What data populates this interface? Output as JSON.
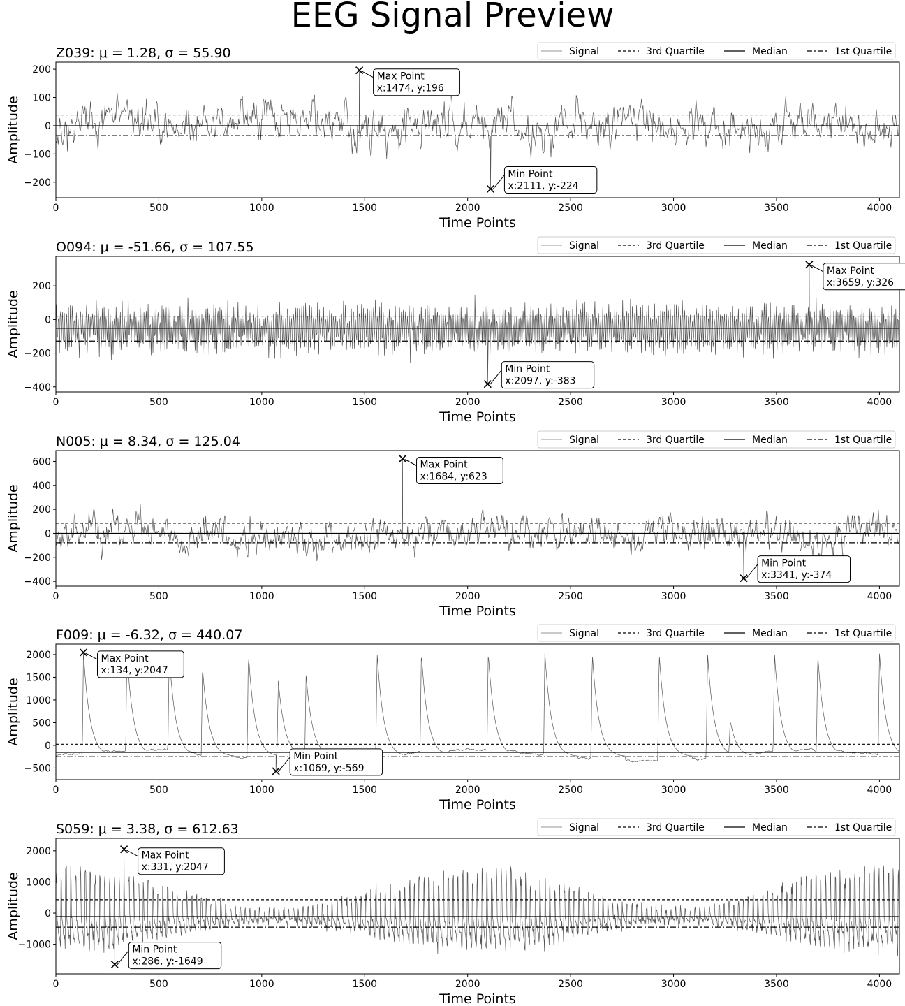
{
  "figure_title": "EEG Signal Preview",
  "legend": {
    "signal": "Signal",
    "q3": "3rd Quartile",
    "median": "Median",
    "q1": "1st Quartile"
  },
  "colors": {
    "signal": "#555555",
    "lines": "#000000",
    "frame": "#000000"
  },
  "chart_data": [
    {
      "type": "line",
      "title": "Z039: μ = 1.28, σ = 55.90",
      "xlabel": "Time Points",
      "ylabel": "Amplitude",
      "xlim": [
        0,
        4097
      ],
      "ylim": [
        -255,
        225
      ],
      "xticks": [
        0,
        500,
        1000,
        1500,
        2000,
        2500,
        3000,
        3500,
        4000
      ],
      "yticks": [
        -200,
        -100,
        0,
        100,
        200
      ],
      "stats": {
        "mean": 1.28,
        "std": 55.9,
        "q3": 38,
        "median": 0,
        "q1": -35
      },
      "max_point": {
        "x": 1474,
        "y": 196,
        "label": "Max Point",
        "coord": "x:1474, y:196"
      },
      "min_point": {
        "x": 2111,
        "y": -224,
        "label": "Min Point",
        "coord": "x:2111, y:-224"
      },
      "signal": {
        "kind": "noise",
        "n": 1100,
        "amp": 62,
        "seed": 11
      }
    },
    {
      "type": "line",
      "title": "O094: μ = -51.66, σ = 107.55",
      "xlabel": "Time Points",
      "ylabel": "Amplitude",
      "xlim": [
        0,
        4097
      ],
      "ylim": [
        -430,
        375
      ],
      "xticks": [
        0,
        500,
        1000,
        1500,
        2000,
        2500,
        3000,
        3500,
        4000
      ],
      "yticks": [
        -400,
        -200,
        0,
        200
      ],
      "stats": {
        "mean": -51.66,
        "std": 107.55,
        "q3": 20,
        "median": -52,
        "q1": -128
      },
      "max_point": {
        "x": 3659,
        "y": 326,
        "label": "Max Point",
        "coord": "x:3659, y:326"
      },
      "min_point": {
        "x": 2097,
        "y": -383,
        "label": "Min Point",
        "coord": "x:2097, y:-383"
      },
      "signal": {
        "kind": "oscill",
        "n": 1400,
        "amp": 110,
        "seed": 23
      }
    },
    {
      "type": "line",
      "title": "N005: μ = 8.34, σ = 125.04",
      "xlabel": "Time Points",
      "ylabel": "Amplitude",
      "xlim": [
        0,
        4097
      ],
      "ylim": [
        -440,
        690
      ],
      "xticks": [
        0,
        500,
        1000,
        1500,
        2000,
        2500,
        3000,
        3500,
        4000
      ],
      "yticks": [
        -400,
        -200,
        0,
        200,
        400,
        600
      ],
      "stats": {
        "mean": 8.34,
        "std": 125.04,
        "q3": 85,
        "median": 0,
        "q1": -78
      },
      "max_point": {
        "x": 1684,
        "y": 623,
        "label": "Max Point",
        "coord": "x:1684, y:623"
      },
      "min_point": {
        "x": 3341,
        "y": -374,
        "label": "Min Point",
        "coord": "x:3341, y:-374"
      },
      "signal": {
        "kind": "noise",
        "n": 1200,
        "amp": 120,
        "seed": 37
      }
    },
    {
      "type": "line",
      "title": "F009: μ = -6.32, σ = 440.07",
      "xlabel": "Time Points",
      "ylabel": "Amplitude",
      "xlim": [
        0,
        4097
      ],
      "ylim": [
        -755,
        2230
      ],
      "xticks": [
        0,
        500,
        1000,
        1500,
        2000,
        2500,
        3000,
        3500,
        4000
      ],
      "yticks": [
        -500,
        0,
        500,
        1000,
        1500,
        2000
      ],
      "stats": {
        "mean": -6.32,
        "std": 440.07,
        "q3": 25,
        "median": -155,
        "q1": -250
      },
      "max_point": {
        "x": 134,
        "y": 2047,
        "label": "Max Point",
        "coord": "x:134, y:2047"
      },
      "min_point": {
        "x": 1069,
        "y": -569,
        "label": "Min Point",
        "coord": "x:1069, y:-569"
      },
      "signal": {
        "kind": "spikes",
        "n": 1400,
        "seed": 41,
        "spikes": [
          [
            134,
            2047
          ],
          [
            345,
            2047
          ],
          [
            550,
            2047
          ],
          [
            712,
            1720
          ],
          [
            935,
            2047
          ],
          [
            1080,
            1450
          ],
          [
            1215,
            1560
          ],
          [
            1560,
            2047
          ],
          [
            1775,
            2047
          ],
          [
            2100,
            2047
          ],
          [
            2375,
            2047
          ],
          [
            2605,
            2047
          ],
          [
            2930,
            2047
          ],
          [
            3165,
            2047
          ],
          [
            3275,
            550
          ],
          [
            3490,
            2047
          ],
          [
            3700,
            2047
          ],
          [
            4000,
            2047
          ]
        ]
      }
    },
    {
      "type": "line",
      "title": "S059: μ = 3.38, σ = 612.63",
      "xlabel": "Time Points",
      "ylabel": "Amplitude",
      "xlim": [
        0,
        4097
      ],
      "ylim": [
        -1950,
        2400
      ],
      "xticks": [
        0,
        500,
        1000,
        1500,
        2000,
        2500,
        3000,
        3500,
        4000
      ],
      "yticks": [
        -1000,
        0,
        1000,
        2000
      ],
      "stats": {
        "mean": 3.38,
        "std": 612.63,
        "q3": 430,
        "median": -110,
        "q1": -450
      },
      "max_point": {
        "x": 331,
        "y": 2047,
        "label": "Max Point",
        "coord": "x:331, y:2047"
      },
      "min_point": {
        "x": 286,
        "y": -1649,
        "label": "Min Point",
        "coord": "x:286, y:-1649"
      },
      "signal": {
        "kind": "waves",
        "n": 2000,
        "amp": 1000,
        "seed": 53
      }
    }
  ]
}
